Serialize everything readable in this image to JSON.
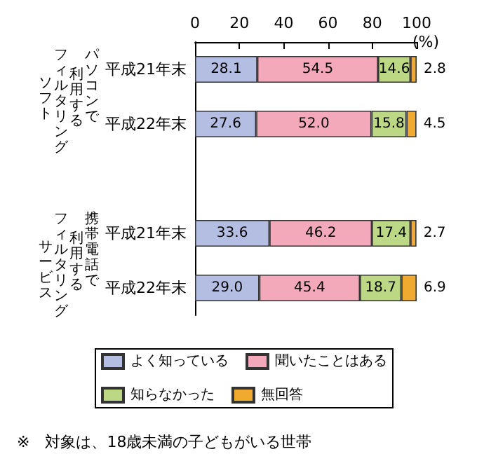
{
  "chart_data": {
    "type": "bar",
    "orientation": "horizontal",
    "stacked": true,
    "categories": [
      "平成21年末",
      "平成22年末",
      null,
      "平成21年末",
      "平成22年末"
    ],
    "series": [
      {
        "name": "よく知っている",
        "color": "#b4bde2",
        "values": [
          28.1,
          27.6,
          null,
          33.6,
          29.0
        ],
        "value_labels": [
          "28.1",
          "27.6",
          null,
          "33.6",
          "29.0"
        ]
      },
      {
        "name": "聞いたことはある",
        "color": "#f4a9ba",
        "values": [
          54.5,
          52.0,
          null,
          46.2,
          45.4
        ],
        "value_labels": [
          "54.5",
          "52.0",
          null,
          "46.2",
          "45.4"
        ]
      },
      {
        "name": "知らなかった",
        "color": "#bcd884",
        "values": [
          14.6,
          15.8,
          null,
          17.4,
          18.7
        ],
        "value_labels": [
          "14.6",
          "15.8",
          null,
          "17.4",
          "18.7"
        ]
      },
      {
        "name": "無回答",
        "color": "#f0aa30",
        "values": [
          2.8,
          4.5,
          null,
          2.7,
          6.9
        ],
        "value_labels": [
          "2.8",
          "4.5",
          null,
          "2.7",
          "6.9"
        ]
      }
    ],
    "xlim": [
      0,
      100
    ],
    "xticks": [
      0,
      20,
      40,
      60,
      80,
      100
    ],
    "xlabel": "(%)",
    "legend": "bottom",
    "grid": false,
    "annotations": [
      "パソコンで",
      "利用する",
      "フィルタリング",
      "ソフト",
      "携帯電話で",
      "利用する",
      "フィルタリング",
      "サービス",
      "※　対象は、18歳未満の子どもがいる世帯"
    ]
  }
}
